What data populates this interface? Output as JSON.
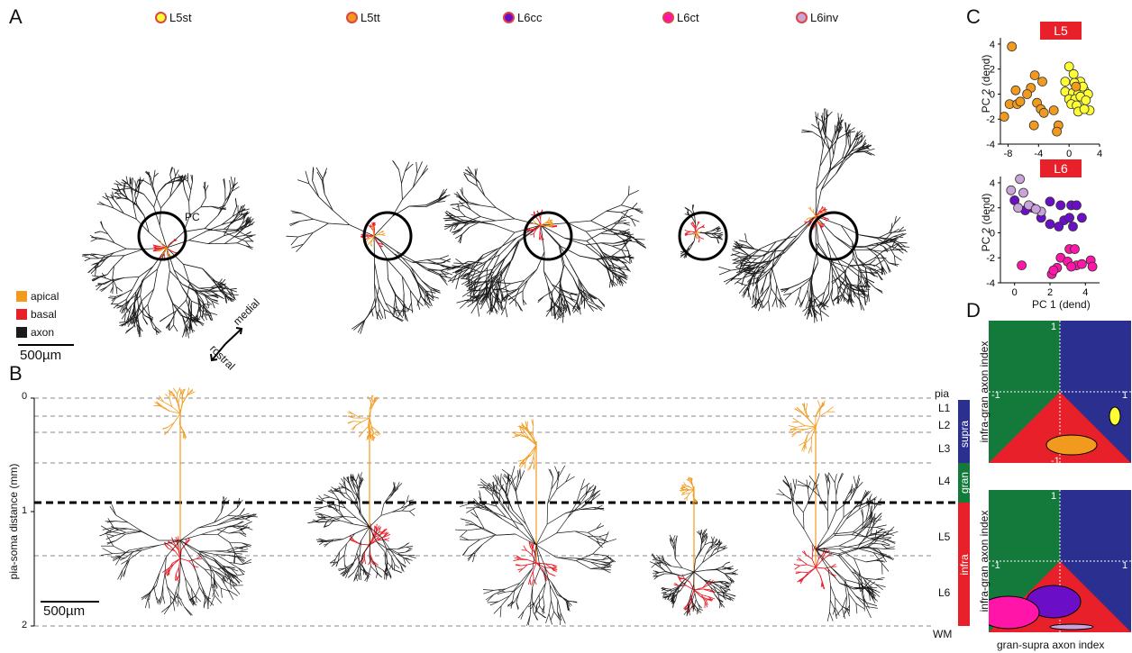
{
  "panels": {
    "a": "A",
    "b": "B",
    "c": "C",
    "d": "D"
  },
  "cell_types": [
    {
      "label": "L5st",
      "color": "#ffff33",
      "ring": "#e53030"
    },
    {
      "label": "L5tt",
      "color": "#f29a1e",
      "ring": "#e53030"
    },
    {
      "label": "L6cc",
      "color": "#6a0fc7",
      "ring": "#e53030"
    },
    {
      "label": "L6ct",
      "color": "#ff16a8",
      "ring": "#e53030"
    },
    {
      "label": "L6inv",
      "color": "#c8a4d8",
      "ring": "#e53030"
    }
  ],
  "panel_a": {
    "pc_label": "PC",
    "legend": [
      {
        "label": "apical",
        "color": "#f29a1e"
      },
      {
        "label": "basal",
        "color": "#e8202a"
      },
      {
        "label": "axon",
        "color": "#1a1a1a"
      }
    ],
    "scalebar": "500µm",
    "orientation": {
      "medial": "medial",
      "rostral": "rostral"
    }
  },
  "panel_b": {
    "ylabel": "pia-soma distance (mm)",
    "yticks": [
      "0",
      "1",
      "2"
    ],
    "scalebar": "500µm",
    "layers": [
      "pia",
      "L1",
      "L2",
      "L3",
      "L4",
      "L5",
      "L6",
      "WM"
    ],
    "bands": [
      {
        "label": "supra",
        "color": "#2b2f8f"
      },
      {
        "label": "gran",
        "color": "#137a3c"
      },
      {
        "label": "infra",
        "color": "#e8202a"
      }
    ]
  },
  "panel_c": {
    "charts": [
      {
        "tag": "L5",
        "ylabel": "PC 2 (dend)",
        "yticks": [
          "4",
          "2",
          "0",
          "-2",
          "-4"
        ],
        "xticks": [
          "-8",
          "-4",
          "0",
          "4"
        ]
      },
      {
        "tag": "L6",
        "ylabel": "PC 2 (dend)",
        "yticks": [
          "4",
          "2",
          "0",
          "-2",
          "-4"
        ],
        "xticks": [
          "0",
          "2",
          "4"
        ],
        "xlabel": "PC 1 (dend)"
      }
    ]
  },
  "panel_d": {
    "ylabel": "infra-gran axon index",
    "xlabel": "gran-supra axon index",
    "ticks": {
      "one": "1",
      "neg_one": "-1"
    },
    "colors": {
      "green": "#137a3c",
      "blue": "#2b2f8f",
      "red": "#e8202a"
    }
  },
  "chart_data": [
    {
      "type": "scatter",
      "tag": "L5",
      "xlabel": "",
      "ylabel": "PC 2 (dend)",
      "xlim": [
        -9,
        4
      ],
      "ylim": [
        -4,
        4.5
      ],
      "series": [
        {
          "name": "L5st",
          "color": "#ffff33",
          "points": [
            [
              0,
              2.2
            ],
            [
              0.6,
              1.6
            ],
            [
              -0.5,
              1
            ],
            [
              1.5,
              1
            ],
            [
              -0.5,
              0.2
            ],
            [
              0.5,
              0.1
            ],
            [
              1.2,
              0
            ],
            [
              2,
              0.3
            ],
            [
              2.5,
              0
            ],
            [
              0,
              -0.4
            ],
            [
              0.8,
              -0.4
            ],
            [
              1.5,
              -0.2
            ],
            [
              2.2,
              -0.5
            ],
            [
              0.3,
              -0.8
            ],
            [
              1,
              -0.9
            ],
            [
              2.7,
              -1.3
            ],
            [
              1.2,
              -1.4
            ],
            [
              2,
              -1.2
            ],
            [
              0.7,
              0.9
            ],
            [
              1.8,
              0.6
            ]
          ]
        },
        {
          "name": "L5tt",
          "color": "#f29a1e",
          "points": [
            [
              -7.5,
              3.8
            ],
            [
              -4.5,
              1.5
            ],
            [
              -3.5,
              1
            ],
            [
              -5,
              0.5
            ],
            [
              -7,
              0.3
            ],
            [
              -7.8,
              -0.8
            ],
            [
              -6.8,
              -0.8
            ],
            [
              -4.2,
              -0.7
            ],
            [
              -3.7,
              -1.2
            ],
            [
              -3.3,
              -1.5
            ],
            [
              -8.5,
              -1.8
            ],
            [
              -4.6,
              -2.5
            ],
            [
              -2,
              -1.3
            ],
            [
              -1.4,
              -2.5
            ],
            [
              -1.6,
              -3
            ],
            [
              0.9,
              0.6
            ],
            [
              -6.4,
              -0.6
            ],
            [
              -5.5,
              0
            ]
          ]
        }
      ]
    },
    {
      "type": "scatter",
      "tag": "L6",
      "xlabel": "PC 1 (dend)",
      "ylabel": "PC 2 (dend)",
      "xlim": [
        -0.8,
        4.8
      ],
      "ylim": [
        -4,
        4.5
      ],
      "series": [
        {
          "name": "L6cc",
          "color": "#6a0fc7",
          "points": [
            [
              0,
              2.6
            ],
            [
              1,
              2
            ],
            [
              2,
              2.5
            ],
            [
              2.6,
              2.2
            ],
            [
              3.2,
              2.2
            ],
            [
              3.5,
              2.2
            ],
            [
              0.6,
              1.8
            ],
            [
              1.5,
              1.2
            ],
            [
              2.8,
              1
            ],
            [
              3.8,
              1.2
            ],
            [
              2,
              0.7
            ],
            [
              3.3,
              0.5
            ],
            [
              3.1,
              1.2
            ],
            [
              2.5,
              0.5
            ]
          ]
        },
        {
          "name": "L6ct",
          "color": "#ff16a8",
          "points": [
            [
              0.4,
              -2.6
            ],
            [
              3.1,
              -1.3
            ],
            [
              3.4,
              -1.3
            ],
            [
              2.6,
              -2
            ],
            [
              3,
              -2.3
            ],
            [
              3.5,
              -2.6
            ],
            [
              3.8,
              -2.5
            ],
            [
              4.3,
              -2.2
            ],
            [
              4.4,
              -2.7
            ],
            [
              2.4,
              -2.8
            ],
            [
              2.1,
              -3.3
            ],
            [
              3.2,
              -2.7
            ],
            [
              2.2,
              -3
            ]
          ]
        },
        {
          "name": "L6inv",
          "color": "#c8a4d8",
          "points": [
            [
              0.3,
              4.3
            ],
            [
              -0.2,
              3.4
            ],
            [
              0.5,
              3.2
            ],
            [
              0.8,
              2.2
            ],
            [
              1.5,
              1.7
            ],
            [
              0.2,
              2
            ],
            [
              1.2,
              1.9
            ]
          ]
        }
      ]
    }
  ]
}
